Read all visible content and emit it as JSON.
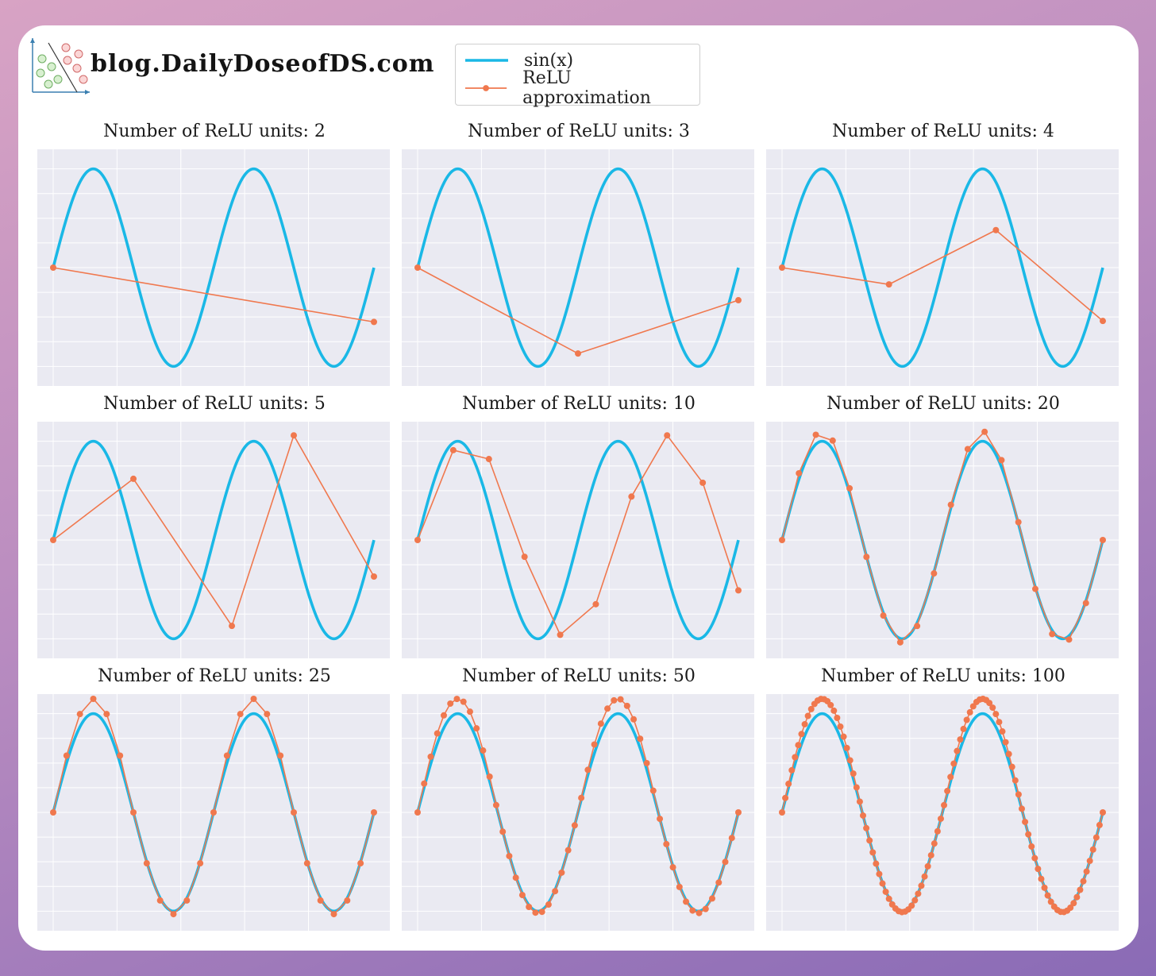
{
  "brand": {
    "text": "blog.DailyDoseofDS.com"
  },
  "legend": [
    {
      "label": "sin(x)",
      "color": "#1ab8e6",
      "marker": false
    },
    {
      "label": "ReLU approximation",
      "color": "#f0784e",
      "marker": true
    }
  ],
  "colors": {
    "sine": "#1ab8e6",
    "relu": "#f0784e",
    "panel_bg": "#eaeaf2",
    "grid": "#ffffff"
  },
  "chart_data": {
    "type": "line",
    "x_range": [
      0,
      12.566
    ],
    "y_range": [
      -1.15,
      1.15
    ],
    "grid": true,
    "panels": [
      {
        "title": "Number of ReLU units: 2",
        "n": 2,
        "x": [
          0,
          12.566
        ],
        "y": [
          0.0,
          -0.55
        ]
      },
      {
        "title": "Number of ReLU units: 3",
        "n": 3,
        "x": [
          0,
          6.283,
          12.566
        ],
        "y": [
          0.0,
          -0.87,
          -0.33
        ]
      },
      {
        "title": "Number of ReLU units: 4",
        "n": 4,
        "x": [
          0,
          4.189,
          8.378,
          12.566
        ],
        "y": [
          0.0,
          -0.17,
          0.38,
          -0.54
        ]
      },
      {
        "title": "Number of ReLU units: 5",
        "n": 5,
        "x": [
          0,
          3.142,
          7.0,
          9.425,
          12.566
        ],
        "y": [
          0.0,
          0.62,
          -0.87,
          1.06,
          -0.37
        ]
      },
      {
        "title": "Number of ReLU units: 10",
        "n": 10,
        "x": [
          0,
          1.396,
          2.793,
          4.189,
          5.585,
          6.981,
          8.378,
          9.774,
          11.17,
          12.566
        ],
        "y": [
          0.0,
          0.91,
          0.82,
          -0.17,
          -0.96,
          -0.65,
          0.44,
          1.06,
          0.58,
          -0.51
        ]
      }
    ],
    "dense_panels": [
      {
        "title": "Number of ReLU units: 20",
        "n": 20,
        "y_offset": 0.04,
        "max_offset": 0.1
      },
      {
        "title": "Number of ReLU units: 25",
        "n": 25,
        "y_offset": 0.03,
        "max_offset": 0.15
      },
      {
        "title": "Number of ReLU units: 50",
        "n": 50,
        "y_offset": 0.02,
        "max_offset": 0.15
      },
      {
        "title": "Number of ReLU units: 100",
        "n": 100,
        "y_offset": 0.01,
        "max_offset": 0.15
      }
    ],
    "series": [
      {
        "name": "sin(x)"
      },
      {
        "name": "ReLU approximation"
      }
    ]
  }
}
